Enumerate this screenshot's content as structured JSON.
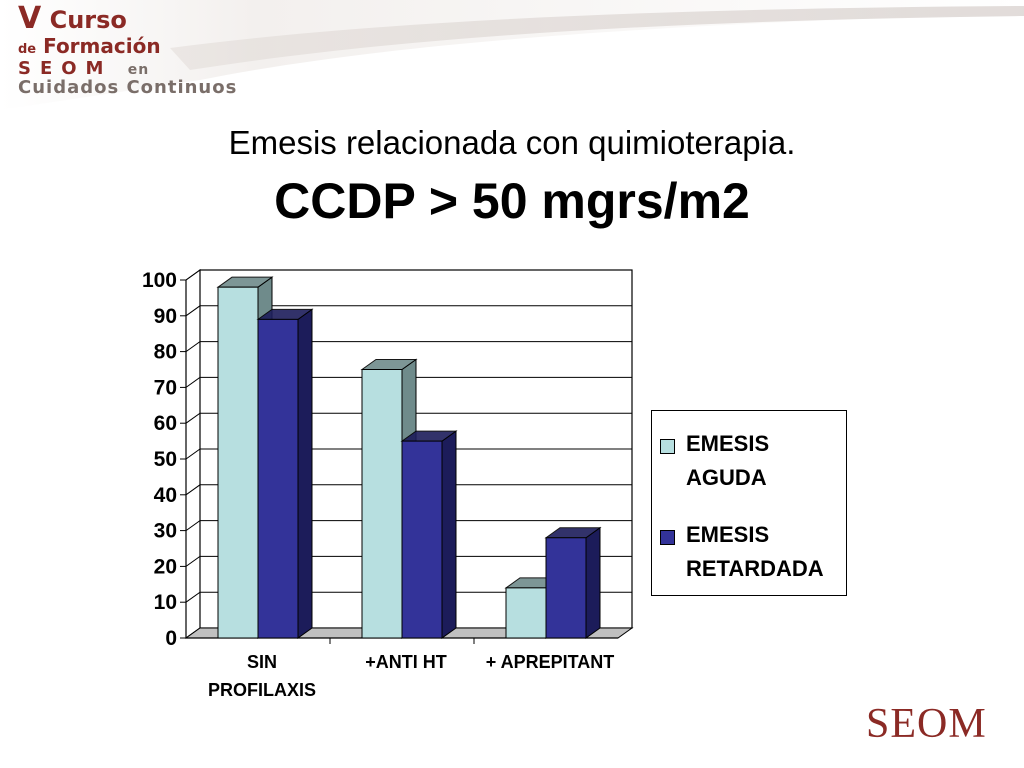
{
  "header": {
    "logo_line1_big": "V",
    "logo_line1": "Curso",
    "logo_line2_small": "de",
    "logo_line2": "Formación",
    "logo_line3": "SEOM",
    "logo_line3_small": "en",
    "logo_line4": "Cuidados Continuos"
  },
  "title": "Emesis relacionada con quimioterapia.",
  "subtitle": "CCDP > 50 mgrs/m2",
  "brand": "SEOM",
  "colors": {
    "aguda": "#b7dfe0",
    "aguda_side": "#6f8b8b",
    "retardada": "#333399",
    "retardada_side": "#1c1c5a",
    "brand": "#8b2a25"
  },
  "chart_data": {
    "type": "bar",
    "categories": [
      "SIN PROFILAXIS",
      "+ANTI HT",
      "+ APREPITANT"
    ],
    "category_lines": [
      [
        "SIN",
        "PROFILAXIS"
      ],
      [
        "+ANTI HT"
      ],
      [
        "+ APREPITANT"
      ]
    ],
    "series": [
      {
        "name": "EMESIS AGUDA",
        "legend_lines": [
          "EMESIS",
          "AGUDA"
        ],
        "values": [
          98,
          75,
          14
        ]
      },
      {
        "name": "EMESIS RETARDADA",
        "legend_lines": [
          "EMESIS",
          "RETARDADA"
        ],
        "values": [
          89,
          55,
          28
        ]
      }
    ],
    "ylim": [
      0,
      100
    ],
    "yticks": [
      0,
      10,
      20,
      30,
      40,
      50,
      60,
      70,
      80,
      90,
      100
    ],
    "grid": true,
    "three_d": true,
    "legend_position": "right"
  }
}
